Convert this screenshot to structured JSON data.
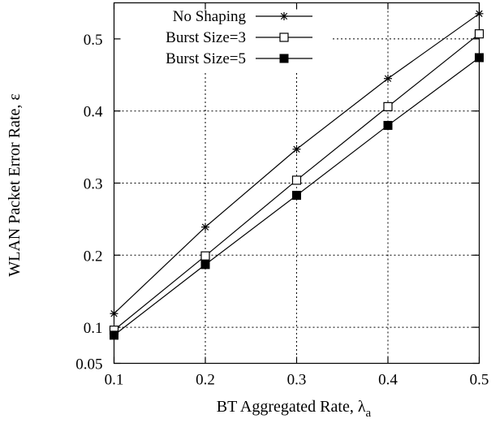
{
  "chart_data": {
    "type": "line",
    "xlabel": "BT Aggregated Rate, λ",
    "xlabel_subscript": "a",
    "ylabel": "WLAN Packet Error Rate, ε",
    "xlim": [
      0.1,
      0.5
    ],
    "ylim": [
      0.05,
      0.55
    ],
    "x_ticks": [
      0.1,
      0.2,
      0.3,
      0.4,
      0.5
    ],
    "x_tick_labels": [
      "0.1",
      "0.2",
      "0.3",
      "0.4",
      "0.5"
    ],
    "y_ticks": [
      0.05,
      0.1,
      0.2,
      0.3,
      0.4,
      0.5
    ],
    "y_tick_labels": [
      "0.05",
      "0.1",
      "0.2",
      "0.3",
      "0.4",
      "0.5"
    ],
    "grid": true,
    "legend_position": "top-left",
    "x": [
      0.1,
      0.2,
      0.3,
      0.4,
      0.5
    ],
    "series": [
      {
        "name": "No Shaping",
        "marker": "asterisk",
        "values": [
          0.119,
          0.239,
          0.347,
          0.445,
          0.535
        ]
      },
      {
        "name": "Burst Size=3",
        "marker": "open-square",
        "values": [
          0.096,
          0.199,
          0.304,
          0.406,
          0.507
        ]
      },
      {
        "name": "Burst Size=5",
        "marker": "filled-square",
        "values": [
          0.089,
          0.187,
          0.283,
          0.38,
          0.474
        ]
      }
    ]
  }
}
